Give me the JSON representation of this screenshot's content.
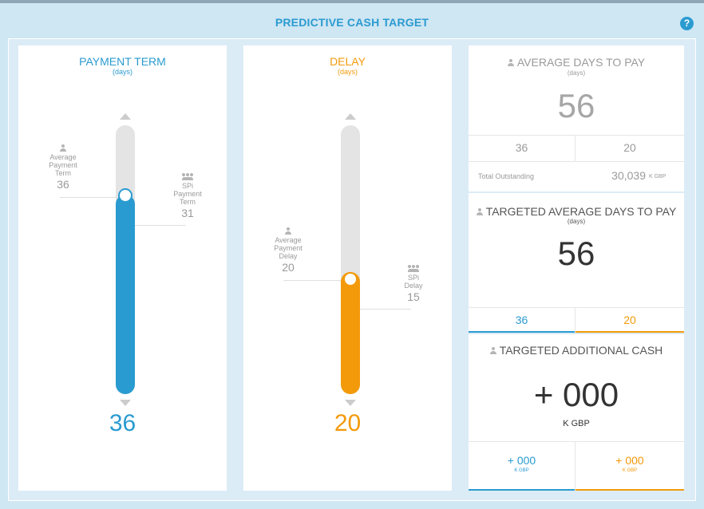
{
  "header": {
    "title": "PREDICTIVE CASH TARGET",
    "help": "?"
  },
  "payment_term": {
    "title": "PAYMENT TERM",
    "unit": "(days)",
    "value": "36",
    "slider_level": 0.73,
    "avg_marker": {
      "label_line1": "Average",
      "label_line2": "Payment",
      "label_line3": "Term",
      "value": "36"
    },
    "spi_marker": {
      "label_line1": "SPi",
      "label_line2": "Payment",
      "label_line3": "Term",
      "value": "31"
    }
  },
  "delay": {
    "title": "DELAY",
    "unit": "(days)",
    "value": "20",
    "slider_level": 0.45,
    "avg_marker": {
      "label_line1": "Average",
      "label_line2": "Payment",
      "label_line3": "Delay",
      "value": "20"
    },
    "spi_marker": {
      "label_line1": "SPi",
      "label_line2": "Delay",
      "value": "15"
    }
  },
  "average_days": {
    "title": "AVERAGE DAYS TO PAY",
    "unit": "(days)",
    "value": "56",
    "term": "36",
    "delay": "20",
    "outstanding_label": "Total Outstanding",
    "outstanding_value": "30,039",
    "outstanding_unit": "K GBP"
  },
  "targeted_days": {
    "title": "TARGETED AVERAGE DAYS TO PAY",
    "unit": "(days)",
    "value": "56",
    "term": "36",
    "delay": "20"
  },
  "targeted_cash": {
    "title": "TARGETED ADDITIONAL CASH",
    "value": "+ 000",
    "unit": "K GBP",
    "term_value": "+ 000",
    "term_unit": "K GBP",
    "delay_value": "+ 000",
    "delay_unit": "K GBP"
  },
  "colors": {
    "blue": "#2a9bd0",
    "orange": "#f39a0b",
    "grey": "#9a9a9a"
  }
}
